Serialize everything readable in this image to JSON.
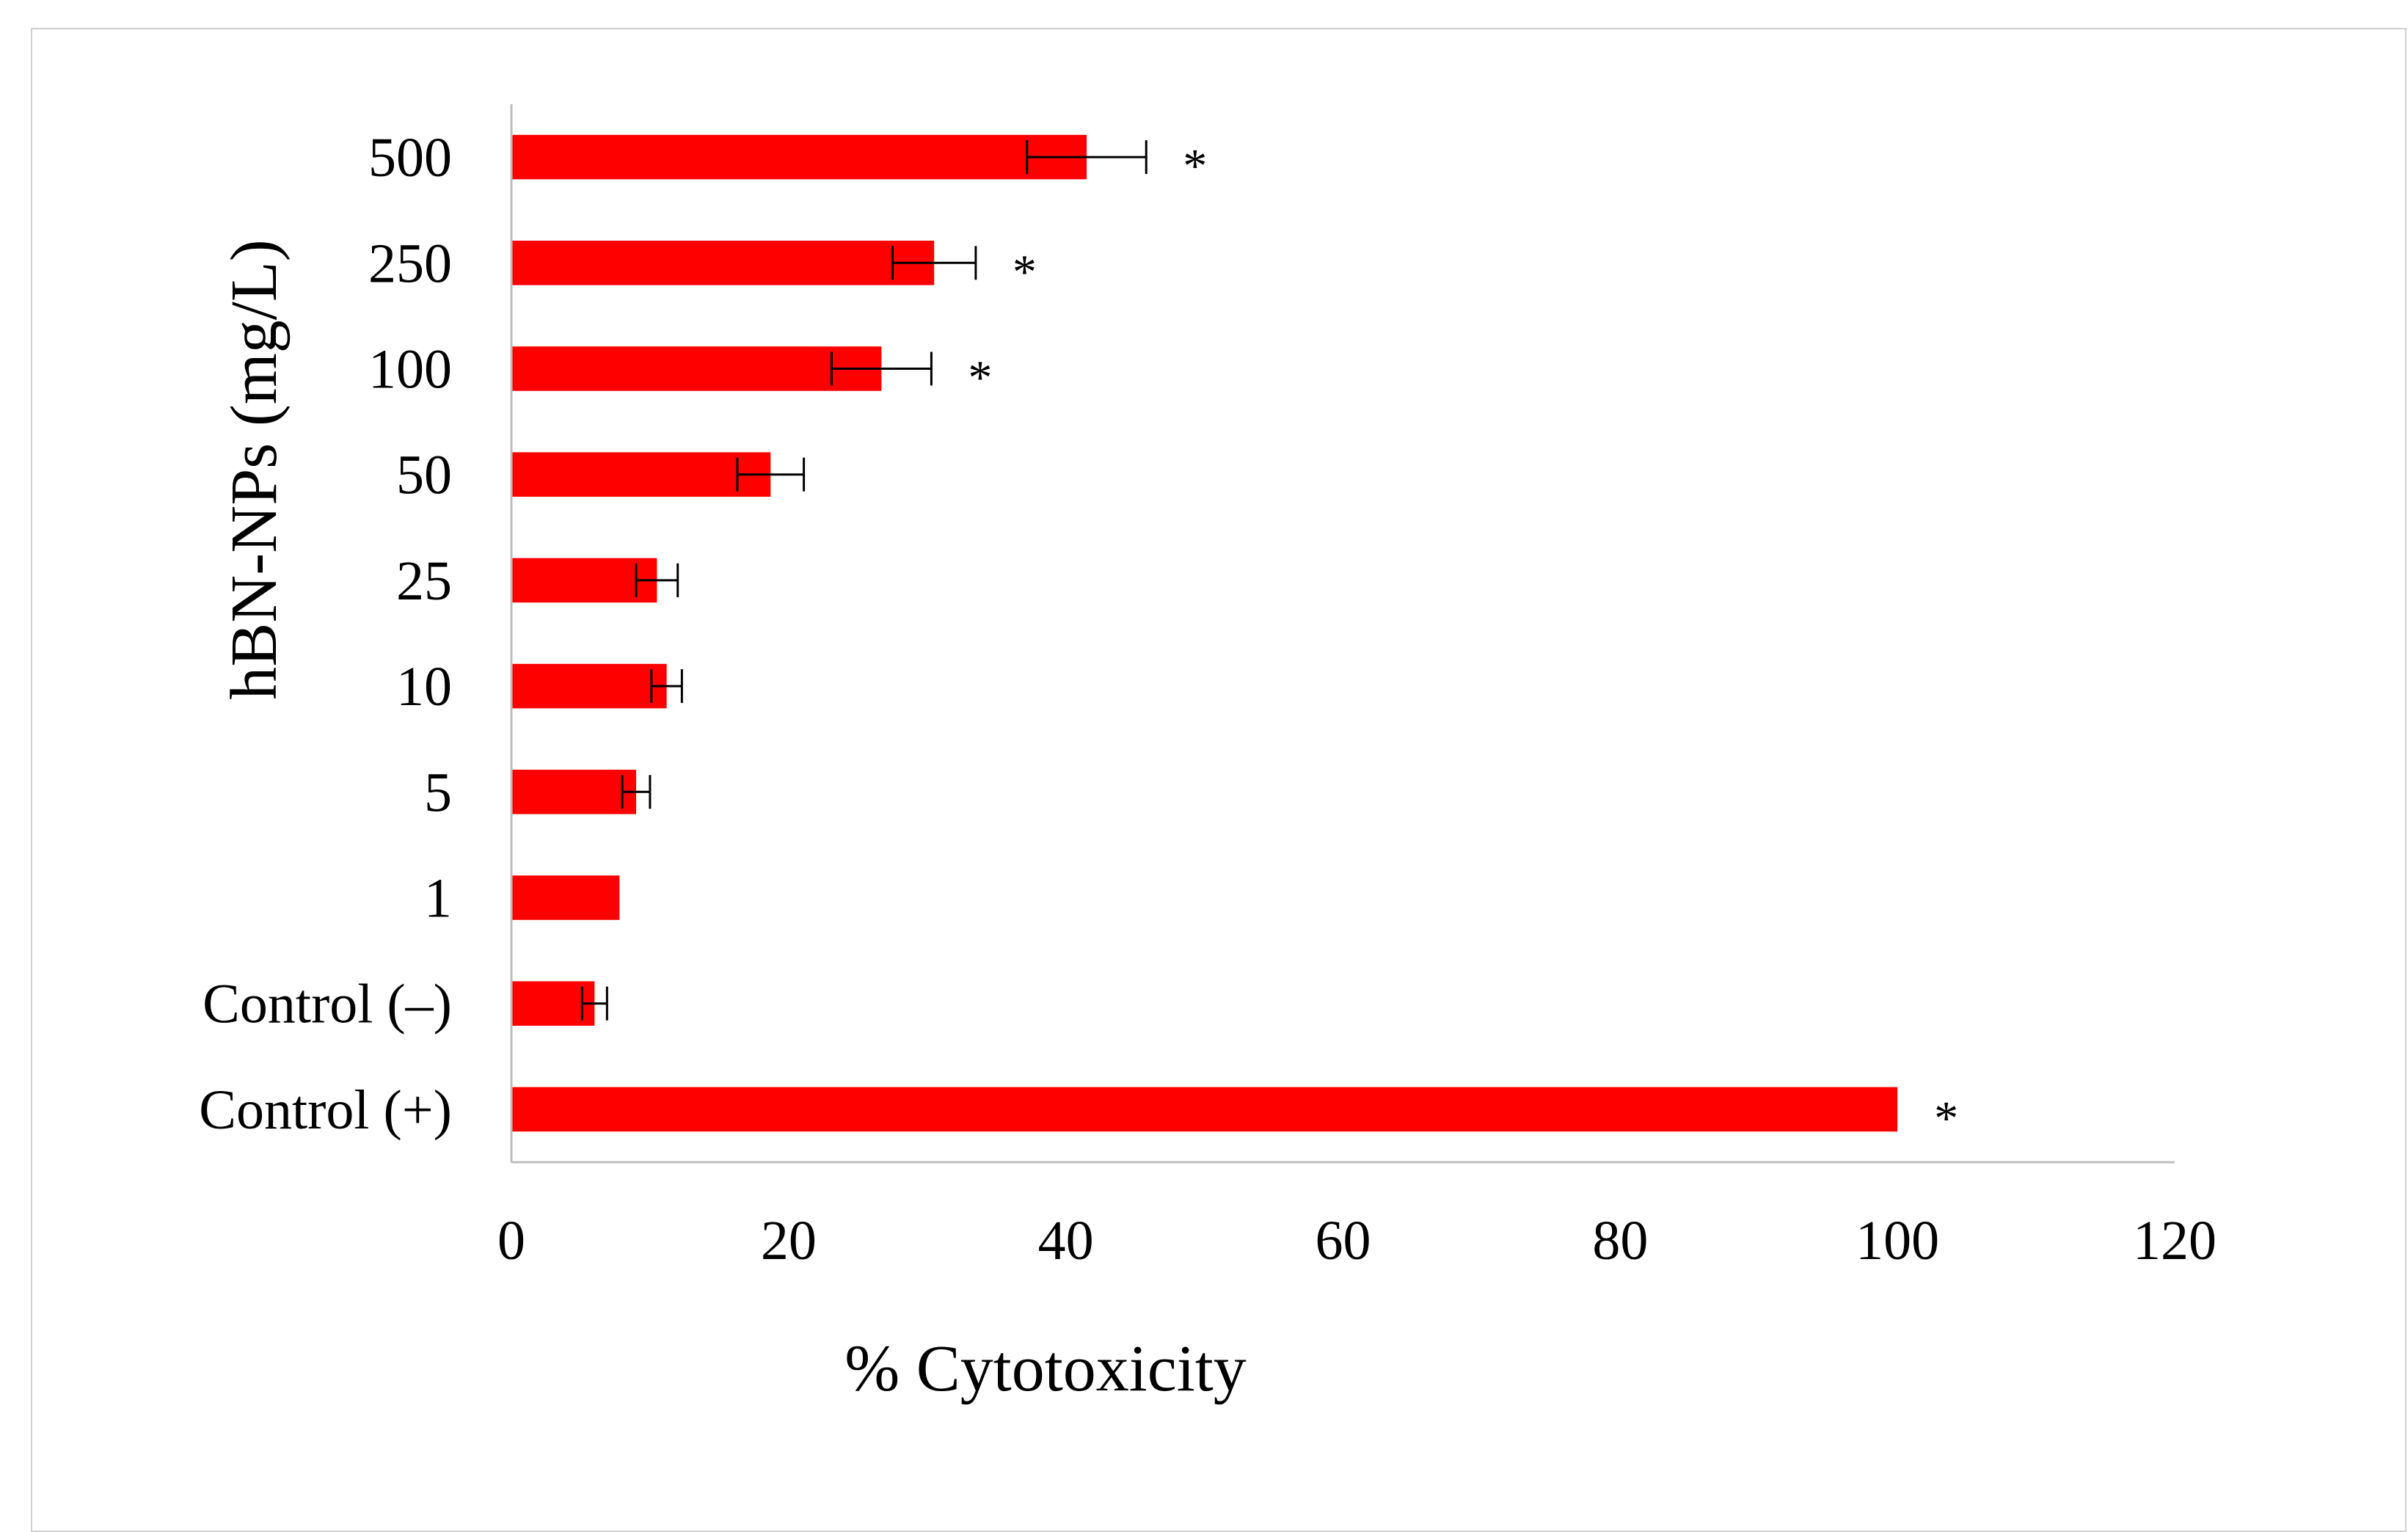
{
  "chart_data": {
    "type": "bar",
    "orientation": "horizontal",
    "title": "",
    "xlabel": "% Cytotoxicity",
    "ylabel": "hBN-NPs (mg/L)",
    "xlim": [
      0,
      120
    ],
    "x_ticks": [
      "0",
      "20",
      "40",
      "60",
      "80",
      "100",
      "120"
    ],
    "grid": false,
    "bar_color": "#ff0000",
    "categories": [
      "500",
      "250",
      "100",
      "50",
      "25",
      "10",
      "5",
      "1",
      "Control (–)",
      "Control (+)"
    ],
    "values": [
      41.5,
      30.5,
      26.7,
      18.7,
      10.5,
      11.2,
      9.0,
      7.8,
      6.0,
      100.0
    ],
    "errors": [
      4.3,
      3.0,
      3.6,
      2.4,
      1.5,
      1.1,
      1.0,
      0.0,
      0.9,
      0.0
    ],
    "significance": [
      "*",
      "*",
      "*",
      "",
      "",
      "",
      "",
      "",
      "",
      "*"
    ]
  }
}
